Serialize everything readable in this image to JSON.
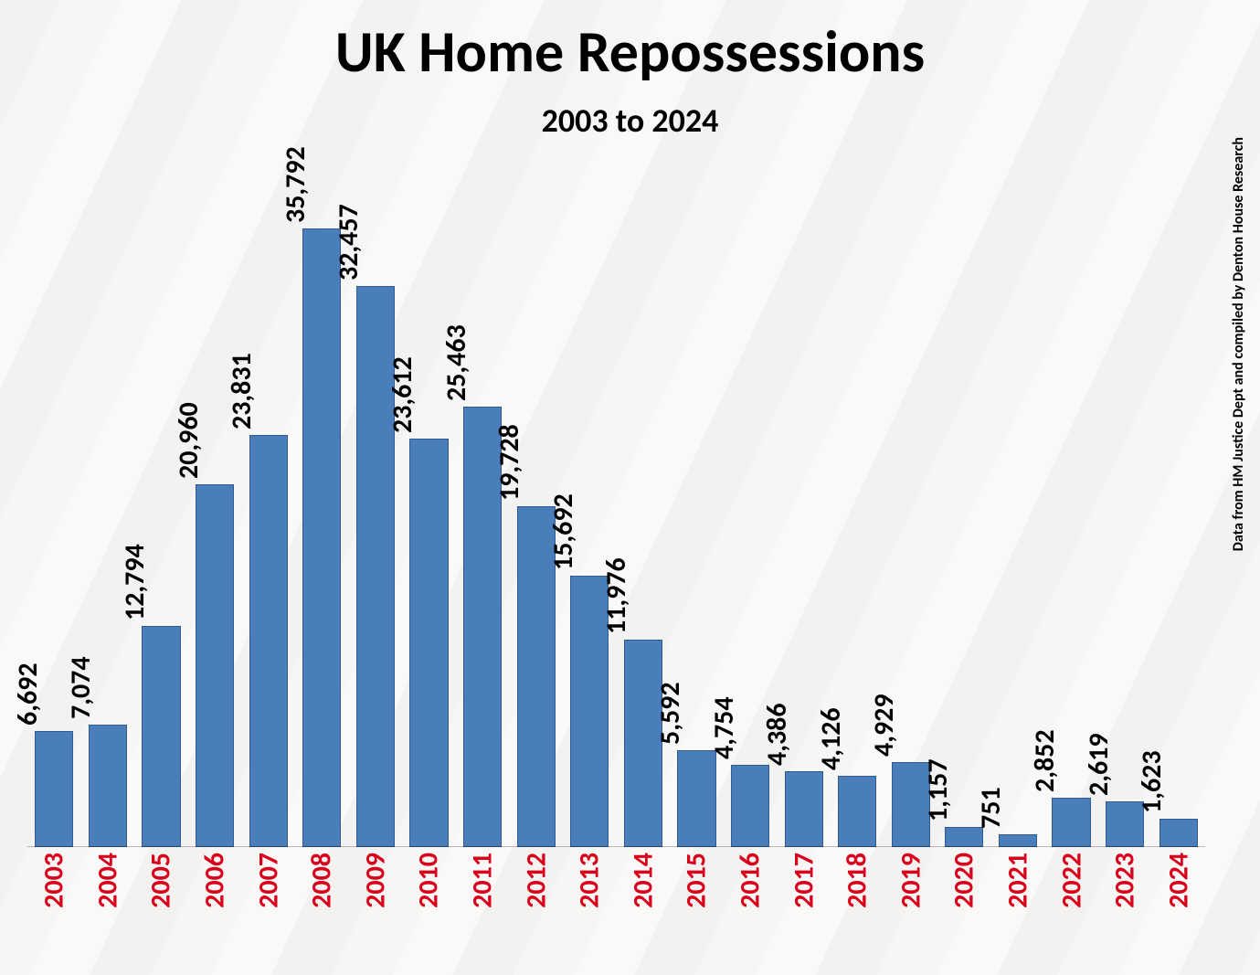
{
  "chart": {
    "type": "bar",
    "title": "UK Home Repossessions",
    "title_fontsize": 64,
    "subtitle": "2003 to 2024",
    "subtitle_fontsize": 36,
    "side_note": "Data from HM Justice Dept and compiled by Denton House Research",
    "side_note_fontsize": 16,
    "categories": [
      "2003",
      "2004",
      "2005",
      "2006",
      "2007",
      "2008",
      "2009",
      "2010",
      "2011",
      "2012",
      "2013",
      "2014",
      "2015",
      "2016",
      "2017",
      "2018",
      "2019",
      "2020",
      "2021",
      "2022",
      "2023",
      "2024"
    ],
    "values": [
      6692,
      7074,
      12794,
      20960,
      23831,
      35792,
      32457,
      23612,
      25463,
      19728,
      15692,
      11976,
      5592,
      4754,
      4386,
      4126,
      4929,
      1157,
      751,
      2852,
      2619,
      1623
    ],
    "value_labels": [
      "6,692",
      "7,074",
      "12,794",
      "20,960",
      "23,831",
      "35,792",
      "32,457",
      "23,612",
      "25,463",
      "19,728",
      "15,692",
      "11,976",
      "5,592",
      "4,754",
      "4,386",
      "4,126",
      "4,929",
      "1,157",
      "751",
      "2,852",
      "2,619",
      "1,623"
    ],
    "bar_color": "#4a7ebb",
    "bar_border_color": "#2f5a92",
    "value_label_color": "#000000",
    "value_label_fontsize": 30,
    "year_label_color": "#d9001b",
    "year_label_fontsize": 30,
    "y_max": 40000,
    "y_min": 0,
    "background_overlay_color": "#ffffff",
    "background_overlay_opacity": 0.78,
    "bar_width_ratio": 0.72
  }
}
